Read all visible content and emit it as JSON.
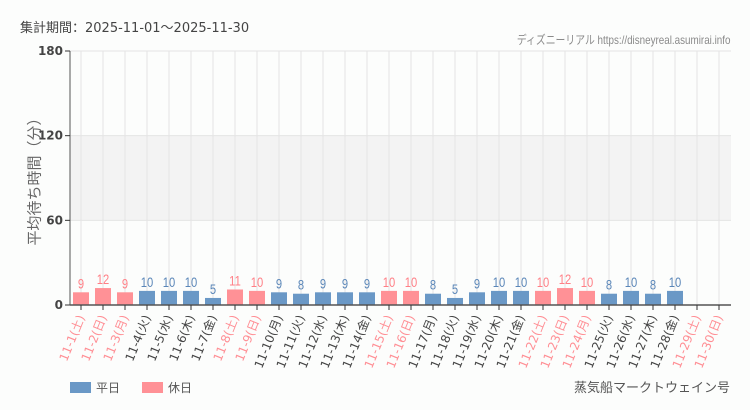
{
  "header": {
    "period_label": "集計期間：2025-11-01〜2025-11-30",
    "credit": "ディズニーリアル https://disneyreal.asumirai.info"
  },
  "footer": {
    "attraction": "蒸気船マークトウェイン号"
  },
  "legend": [
    {
      "label": "平日",
      "color": "#6a98c6"
    },
    {
      "label": "休日",
      "color": "#ff9196"
    }
  ],
  "colors": {
    "weekday": "#6a98c6",
    "holiday": "#ff9196",
    "weekday_label": "#5a86b8",
    "holiday_label": "#ff7f86",
    "axis_text_weekday": "#444444",
    "axis_text_holiday": "#ff8e94",
    "band": "#f3f3f3",
    "grid": "#e4e4e4"
  },
  "chart_data": {
    "type": "bar",
    "title": "集計期間：2025-11-01〜2025-11-30",
    "xlabel": "",
    "ylabel": "平均待ち時間（分）",
    "ylim": [
      0,
      180
    ],
    "yticks": [
      0,
      60,
      120,
      180
    ],
    "grid": true,
    "shaded_band": [
      60,
      120
    ],
    "legend_position": "bottom-left",
    "categories": [
      "11-1(土)",
      "11-2(日)",
      "11-3(月)",
      "11-4(火)",
      "11-5(水)",
      "11-6(木)",
      "11-7(金)",
      "11-8(土)",
      "11-9(日)",
      "11-10(月)",
      "11-11(火)",
      "11-12(水)",
      "11-13(木)",
      "11-14(金)",
      "11-15(土)",
      "11-16(日)",
      "11-17(月)",
      "11-18(火)",
      "11-19(水)",
      "11-20(木)",
      "11-21(金)",
      "11-22(土)",
      "11-23(日)",
      "11-24(月)",
      "11-25(火)",
      "11-26(水)",
      "11-27(木)",
      "11-28(金)",
      "11-29(土)",
      "11-30(日)"
    ],
    "day_type": [
      "休日",
      "休日",
      "休日",
      "平日",
      "平日",
      "平日",
      "平日",
      "休日",
      "休日",
      "平日",
      "平日",
      "平日",
      "平日",
      "平日",
      "休日",
      "休日",
      "平日",
      "平日",
      "平日",
      "平日",
      "平日",
      "休日",
      "休日",
      "休日",
      "平日",
      "平日",
      "平日",
      "平日",
      "休日",
      "休日"
    ],
    "values": [
      9,
      12,
      9,
      10,
      10,
      10,
      5,
      11,
      10,
      9,
      8,
      9,
      9,
      9,
      10,
      10,
      8,
      5,
      9,
      10,
      10,
      10,
      12,
      10,
      8,
      10,
      8,
      10,
      null,
      null
    ]
  }
}
